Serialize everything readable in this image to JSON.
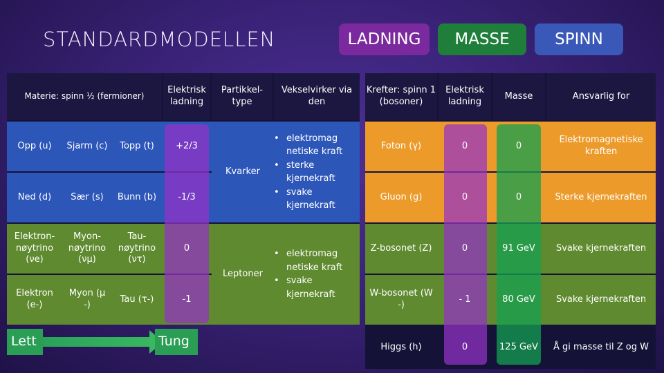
{
  "title": "STANDARDMODELLEN",
  "tabs": {
    "ladning": "LADNING",
    "masse": "MASSE",
    "spinn": "SPINN"
  },
  "left_table": {
    "header_matter": "Materie:  spinn ½ (fermioner)",
    "header_charge": "Elektrisk ladning",
    "header_type": "Partikkel-type",
    "header_interaction": "Vekselvirker via den",
    "rows": [
      {
        "c1": "Opp (u)",
        "c2": "Sjarm (c)",
        "c3": "Topp (t)",
        "charge": "+2/3"
      },
      {
        "c1": "Ned (d)",
        "c2": "Sær (s)",
        "c3": "Bunn (b)",
        "charge": "-1/3"
      },
      {
        "c1": "Elektron-nøytrino",
        "c1_sym": "(νe)",
        "c2": "Myon-nøytrino",
        "c2_sym": "(νμ)",
        "c3": "Tau-nøytrino",
        "c3_sym": "(ντ)",
        "charge": "0"
      },
      {
        "c1": "Elektron",
        "c1_sym": "(e-)",
        "c2": "Myon (μ",
        "c2_sym": "-)",
        "c3": "Tau (τ-)",
        "charge": "-1"
      }
    ],
    "type_quarks": "Kvarker",
    "type_leptons": "Leptoner",
    "quark_forces": [
      "elektromag netiske kraft",
      "sterke kjernekraft",
      "svake kjernekraft"
    ],
    "lepton_forces": [
      "elektromag netiske kraft",
      "svake kjernekraft"
    ]
  },
  "right_table": {
    "header_forces": "Krefter: spinn 1 (bosoner)",
    "header_charge": "Elektrisk ladning",
    "header_mass": "Masse",
    "header_resp": "Ansvarlig for",
    "rows": [
      {
        "name": "Foton (γ)",
        "charge": "0",
        "mass": "0",
        "resp": "Elektromagnetiske kraften"
      },
      {
        "name": "Gluon (g)",
        "charge": "0",
        "mass": "0",
        "resp": "Sterke kjernekraften"
      },
      {
        "name": "Z-bosonet (Z)",
        "charge": "0",
        "mass": "91 GeV",
        "resp": "Svake kjernekraften"
      },
      {
        "name": "W-bosonet (W -)",
        "charge": "- 1",
        "mass": "80 GeV",
        "resp": "Svake kjernekraften"
      },
      {
        "name": "Higgs (h)",
        "charge": "0",
        "mass": "125 GeV",
        "resp": "Å gi masse til Z og W"
      }
    ]
  },
  "arrow": {
    "left": "Lett",
    "right": "Tung"
  },
  "colors": {
    "blue": "#2d56b9",
    "orange": "#ec9b2b",
    "green": "#5f8a2f",
    "purple": "#7a2a9e"
  }
}
